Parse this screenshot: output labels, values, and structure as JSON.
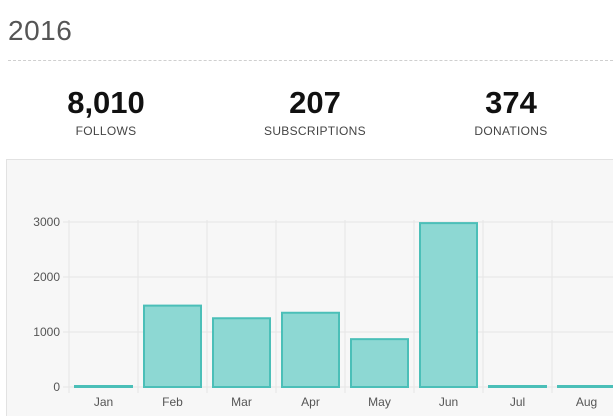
{
  "header": {
    "year": "2016"
  },
  "stats": {
    "follows": {
      "value": "8,010",
      "label": "FOLLOWS"
    },
    "subscriptions": {
      "value": "207",
      "label": "SUBSCRIPTIONS"
    },
    "donations": {
      "value": "374",
      "label": "DONATIONS"
    }
  },
  "colors": {
    "bar_fill": "#8dd8d3",
    "bar_stroke": "#4bbfb8",
    "grid": "#e6e6e6",
    "panel_bg": "#f7f7f7"
  },
  "chart_data": {
    "type": "bar",
    "categories": [
      "Jan",
      "Feb",
      "Mar",
      "Apr",
      "May",
      "Jun",
      "Jul",
      "Aug"
    ],
    "values": [
      0,
      1480,
      1250,
      1350,
      870,
      2980,
      0,
      0
    ],
    "yticks": [
      "0",
      "1000",
      "2000",
      "3000"
    ],
    "ylim": [
      0,
      3000
    ],
    "grid": true,
    "title": "",
    "xlabel": "",
    "ylabel": ""
  }
}
